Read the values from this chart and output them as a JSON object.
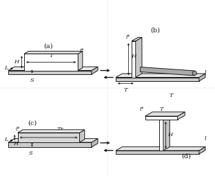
{
  "line_color": "#1a1a1a",
  "font_size": 6,
  "label_font_size": 7,
  "labels": {
    "a": "(a)",
    "b": "(b)",
    "c": "(c)",
    "d": "(d)",
    "T": "T",
    "H": "H",
    "L": "L",
    "S": "S",
    "t_star": "t*",
    "l": "l",
    "Tr": "Tr"
  }
}
